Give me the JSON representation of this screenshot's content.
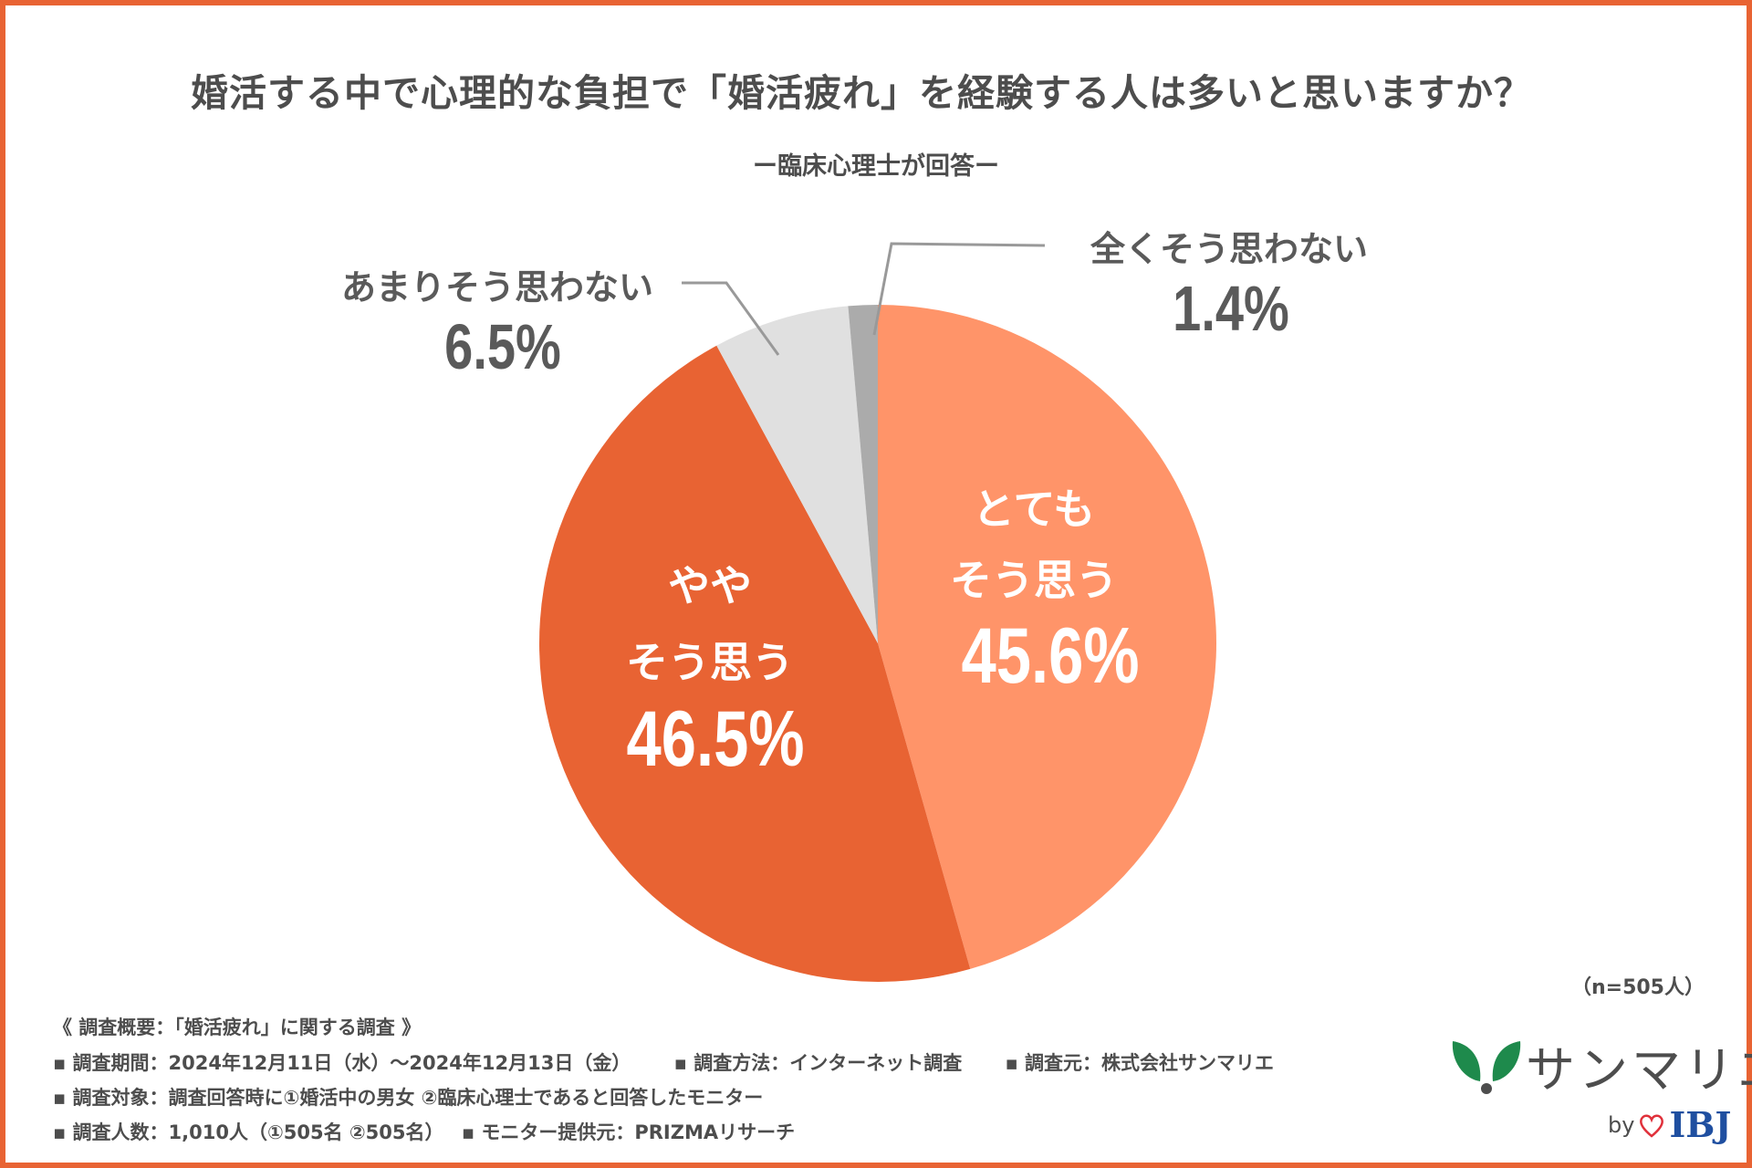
{
  "chart_data": {
    "type": "pie",
    "title": "婚活する中で心理的な負担で「婚活疲れ」を経験する人は多いと思いますか？",
    "subtitle": "ー臨床心理士が回答ー",
    "start": "top",
    "direction": "clockwise",
    "slices": [
      {
        "label_lines": [
          "とても",
          "そう思う"
        ],
        "value": 45.6,
        "value_label": "45.6%",
        "color": "#FF9469"
      },
      {
        "label_lines": [
          "やや",
          "そう思う"
        ],
        "value": 46.5,
        "value_label": "46.5%",
        "color": "#E86333"
      },
      {
        "label_lines": [
          "あまりそう思わない"
        ],
        "value": 6.5,
        "value_label": "6.5%",
        "color": "#E0E0E0"
      },
      {
        "label_lines": [
          "全くそう思わない"
        ],
        "value": 1.4,
        "value_label": "1.4%",
        "color": "#ABABAB"
      }
    ],
    "sample_size": "（n=505人）"
  },
  "footer": {
    "heading": "《 調査概要：「婚活疲れ」に関する調査 》",
    "line1": [
      "▪ 調査期間：2024年12月11日（水）～2024年12月13日（金）",
      "▪ 調査方法：インターネット調査",
      "▪ 調査元：株式会社サンマリエ"
    ],
    "line2": "▪ 調査対象：調査回答時に①婚活中の男女 ②臨床心理士であると回答したモニター",
    "line3": [
      "▪ 調査人数：1,010人（①505名 ②505名）",
      "▪ モニター提供元：PRIZMAリサーチ"
    ]
  },
  "logo": {
    "name": "サンマリエ",
    "by": "by",
    "partner": "IBJ",
    "brand_color": "#1E8A4C"
  },
  "frame_color": "#E86333"
}
